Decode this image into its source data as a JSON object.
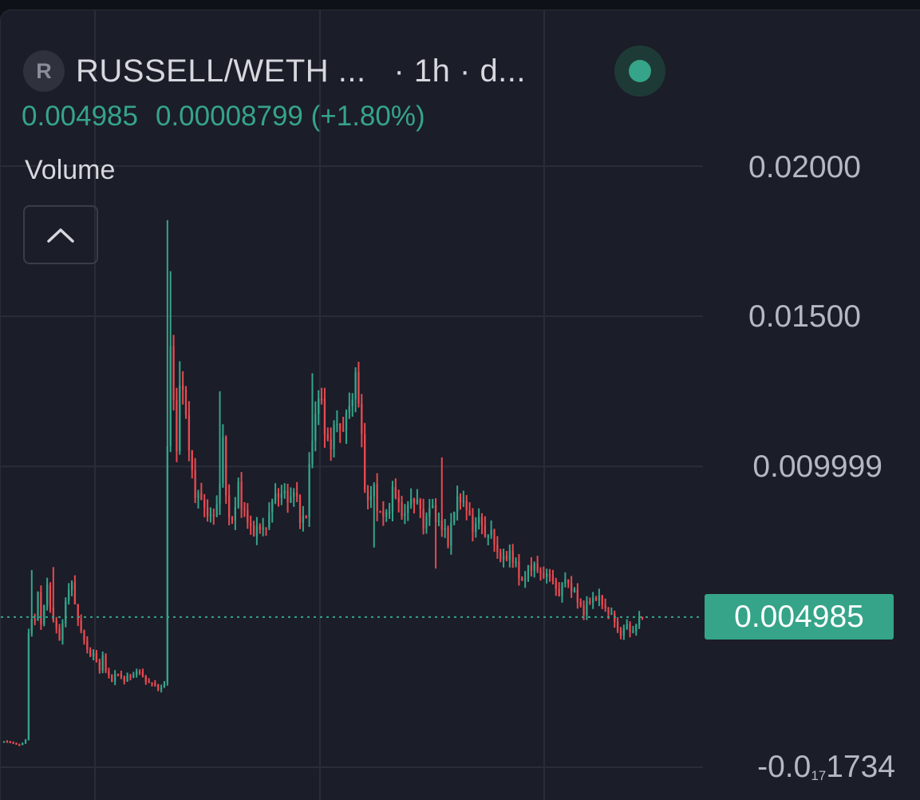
{
  "header": {
    "logo_letter": "R",
    "symbol": "RUSSELL/WETH ...   · 1h · d...",
    "last_price": "0.004985",
    "change": "0.00008799",
    "change_pct": "(+1.80%)",
    "volume_label": "Volume"
  },
  "colors": {
    "background": "#1b1d28",
    "up": "#35a489",
    "down": "#e64a50",
    "text": "#d6d8de",
    "grid": "#2a2c38"
  },
  "icons": {
    "collapse": "chevron-up-icon",
    "status": "status-dot-icon"
  },
  "chart_data": {
    "type": "candlestick",
    "interval": "1h",
    "ylim": [
      -1.734e-05,
      0.02
    ],
    "ytick_labels": [
      "0.02000",
      "0.01500",
      "0.009999",
      "-0.0₁₇1734"
    ],
    "ytick_values": [
      0.02,
      0.015,
      0.009999,
      -1.734e-05
    ],
    "last_price_label": "0.004985",
    "last_price_value": 0.004985,
    "grid": true,
    "close_path": [
      [
        0,
        0.00085
      ],
      [
        3,
        0.0008
      ],
      [
        5,
        0.0007
      ],
      [
        7,
        0.0009
      ],
      [
        8,
        0.0045
      ],
      [
        10,
        0.005
      ],
      [
        11,
        0.0058
      ],
      [
        12,
        0.0048
      ],
      [
        13,
        0.0052
      ],
      [
        14,
        0.0062
      ],
      [
        15,
        0.0053
      ],
      [
        16,
        0.0049
      ],
      [
        17,
        0.0045
      ],
      [
        18,
        0.0043
      ],
      [
        19,
        0.0048
      ],
      [
        20,
        0.0055
      ],
      [
        21,
        0.0058
      ],
      [
        22,
        0.0062
      ],
      [
        23,
        0.0055
      ],
      [
        24,
        0.0048
      ],
      [
        25,
        0.0045
      ],
      [
        26,
        0.0042
      ],
      [
        27,
        0.004
      ],
      [
        28,
        0.0036
      ],
      [
        29,
        0.0038
      ],
      [
        30,
        0.0035
      ],
      [
        31,
        0.0033
      ],
      [
        32,
        0.0036
      ],
      [
        33,
        0.0032
      ],
      [
        35,
        0.0029
      ],
      [
        37,
        0.0031
      ],
      [
        39,
        0.0029
      ],
      [
        41,
        0.003
      ],
      [
        43,
        0.0032
      ],
      [
        45,
        0.003
      ],
      [
        47,
        0.0028
      ],
      [
        49,
        0.0027
      ],
      [
        51,
        0.0026
      ],
      [
        52,
        0.0028
      ],
      [
        53,
        0.0105
      ],
      [
        54,
        0.0145
      ],
      [
        55,
        0.012
      ],
      [
        56,
        0.0105
      ],
      [
        57,
        0.0125
      ],
      [
        58,
        0.013
      ],
      [
        59,
        0.0115
      ],
      [
        60,
        0.0105
      ],
      [
        61,
        0.0098
      ],
      [
        62,
        0.0092
      ],
      [
        64,
        0.0088
      ],
      [
        66,
        0.0085
      ],
      [
        68,
        0.0082
      ],
      [
        70,
        0.0095
      ],
      [
        71,
        0.011
      ],
      [
        72,
        0.0088
      ],
      [
        74,
        0.0082
      ],
      [
        76,
        0.0092
      ],
      [
        78,
        0.0085
      ],
      [
        80,
        0.0078
      ],
      [
        82,
        0.008
      ],
      [
        84,
        0.0078
      ],
      [
        86,
        0.0085
      ],
      [
        88,
        0.009
      ],
      [
        90,
        0.0092
      ],
      [
        92,
        0.0088
      ],
      [
        94,
        0.0093
      ],
      [
        96,
        0.0082
      ],
      [
        98,
        0.0085
      ],
      [
        100,
        0.011
      ],
      [
        102,
        0.0125
      ],
      [
        104,
        0.0112
      ],
      [
        106,
        0.0107
      ],
      [
        108,
        0.0115
      ],
      [
        110,
        0.0112
      ],
      [
        112,
        0.012
      ],
      [
        114,
        0.013
      ],
      [
        116,
        0.011
      ],
      [
        117,
        0.0095
      ],
      [
        118,
        0.0087
      ],
      [
        120,
        0.0093
      ],
      [
        122,
        0.0083
      ],
      [
        124,
        0.0084
      ],
      [
        126,
        0.0091
      ],
      [
        128,
        0.0088
      ],
      [
        130,
        0.0083
      ],
      [
        132,
        0.009
      ],
      [
        134,
        0.0088
      ],
      [
        136,
        0.0081
      ],
      [
        138,
        0.0086
      ],
      [
        140,
        0.0084
      ],
      [
        142,
        0.0079
      ],
      [
        144,
        0.0076
      ],
      [
        146,
        0.0085
      ],
      [
        148,
        0.0091
      ],
      [
        150,
        0.0085
      ],
      [
        152,
        0.008
      ],
      [
        154,
        0.0082
      ],
      [
        156,
        0.0078
      ],
      [
        158,
        0.0077
      ],
      [
        160,
        0.0072
      ],
      [
        162,
        0.0068
      ],
      [
        164,
        0.0072
      ],
      [
        166,
        0.0066
      ],
      [
        168,
        0.0062
      ],
      [
        170,
        0.0065
      ],
      [
        172,
        0.0068
      ],
      [
        174,
        0.0063
      ],
      [
        176,
        0.0065
      ],
      [
        178,
        0.0061
      ],
      [
        180,
        0.0058
      ],
      [
        182,
        0.0062
      ],
      [
        184,
        0.006
      ],
      [
        186,
        0.0055
      ],
      [
        188,
        0.0052
      ],
      [
        190,
        0.0055
      ],
      [
        192,
        0.0057
      ],
      [
        194,
        0.0054
      ],
      [
        196,
        0.0052
      ],
      [
        198,
        0.0048
      ],
      [
        200,
        0.0044
      ],
      [
        202,
        0.0047
      ],
      [
        204,
        0.0045
      ],
      [
        206,
        0.0049
      ],
      [
        207,
        0.004985
      ]
    ],
    "notable_wicks": [
      {
        "bar": 9,
        "high": 0.00655
      },
      {
        "bar": 16,
        "high": 0.00665
      },
      {
        "bar": 53,
        "high": 0.0182
      },
      {
        "bar": 54,
        "high": 0.0165
      },
      {
        "bar": 57,
        "high": 0.0135
      },
      {
        "bar": 70,
        "high": 0.0125
      },
      {
        "bar": 100,
        "high": 0.0131
      },
      {
        "bar": 114,
        "high": 0.0133
      },
      {
        "bar": 142,
        "high": 0.0103
      },
      {
        "bar": 140,
        "low": 0.0066
      },
      {
        "bar": 120,
        "low": 0.0073
      }
    ]
  }
}
